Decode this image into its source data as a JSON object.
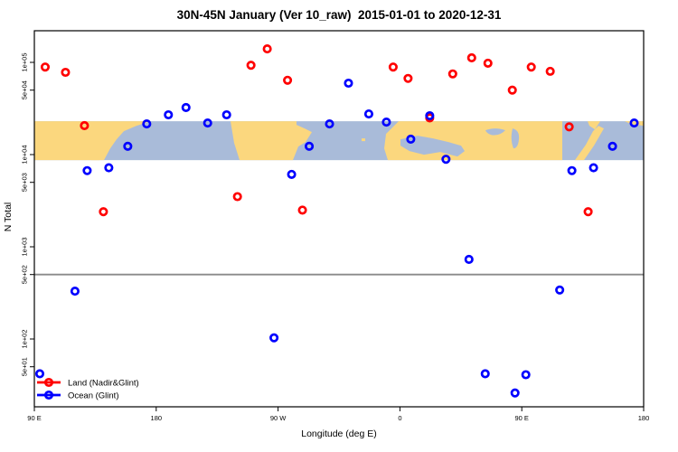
{
  "chart_data": {
    "type": "scatter",
    "title": "30N-45N January (Ver 10_raw)  2015-01-01 to 2020-12-31",
    "xlabel": "Longitude (deg E)",
    "ylabel": "N Total",
    "x_axis": {
      "lim": [
        90,
        540
      ],
      "ticks": [
        {
          "value": 90,
          "label": "90 E"
        },
        {
          "value": 180,
          "label": "180"
        },
        {
          "value": 270,
          "label": "90 W"
        },
        {
          "value": 360,
          "label": "0"
        },
        {
          "value": 450,
          "label": "90 E"
        },
        {
          "value": 540,
          "label": "180"
        }
      ]
    },
    "y_axis": {
      "scale": "log",
      "lim": [
        20,
        200000
      ],
      "ticks": [
        {
          "value": 50,
          "label": "5e+01"
        },
        {
          "value": 100,
          "label": "1e+02"
        },
        {
          "value": 500,
          "label": "5e+02"
        },
        {
          "value": 1000,
          "label": "1e+03"
        },
        {
          "value": 5000,
          "label": "5e+03"
        },
        {
          "value": 10000,
          "label": "1e+04"
        },
        {
          "value": 50000,
          "label": "5e+04"
        },
        {
          "value": 100000,
          "label": "1e+05"
        }
      ]
    },
    "reference_line": {
      "value": 500,
      "color": "#8A8A8A"
    },
    "map_band": {
      "n_top": 23000,
      "n_bottom": 8700,
      "land_color": "#FBD77E",
      "ocean_color": "#A9BBD9",
      "description": "world coastline strip 30N-45N"
    },
    "series": [
      {
        "name": "Land (Nadir&Glint)",
        "color": "#FF0000",
        "points": [
          [
            98,
            89000
          ],
          [
            113,
            78000
          ],
          [
            127,
            20600
          ],
          [
            141,
            2400
          ],
          [
            240,
            3500
          ],
          [
            250,
            93000
          ],
          [
            262,
            140000
          ],
          [
            277,
            64000
          ],
          [
            288,
            2500
          ],
          [
            355,
            89000
          ],
          [
            366,
            67000
          ],
          [
            382,
            25000
          ],
          [
            399,
            75000
          ],
          [
            413,
            112000
          ],
          [
            425,
            98000
          ],
          [
            443,
            50000
          ],
          [
            457,
            89000
          ],
          [
            471,
            80000
          ],
          [
            485,
            20000
          ],
          [
            499,
            2400
          ]
        ]
      },
      {
        "name": "Ocean (Glint)",
        "color": "#0000FF",
        "points": [
          [
            94,
            42
          ],
          [
            120,
            330
          ],
          [
            129,
            6700
          ],
          [
            145,
            7200
          ],
          [
            159,
            12300
          ],
          [
            173,
            21500
          ],
          [
            189,
            27000
          ],
          [
            202,
            32400
          ],
          [
            218,
            22000
          ],
          [
            232,
            27000
          ],
          [
            267,
            103
          ],
          [
            280,
            6100
          ],
          [
            293,
            12300
          ],
          [
            308,
            21500
          ],
          [
            322,
            59500
          ],
          [
            337,
            27600
          ],
          [
            350,
            22500
          ],
          [
            368,
            14700
          ],
          [
            382,
            26400
          ],
          [
            394,
            8900
          ],
          [
            411,
            730
          ],
          [
            423,
            42
          ],
          [
            445,
            26
          ],
          [
            453,
            41
          ],
          [
            478,
            340
          ],
          [
            487,
            6700
          ],
          [
            503,
            7200
          ],
          [
            517,
            12300
          ],
          [
            533,
            22000
          ]
        ]
      }
    ],
    "legend": [
      {
        "label": "Land (Nadir&Glint)",
        "color": "#FF0000"
      },
      {
        "label": "Ocean (Glint)",
        "color": "#0000FF"
      }
    ]
  }
}
